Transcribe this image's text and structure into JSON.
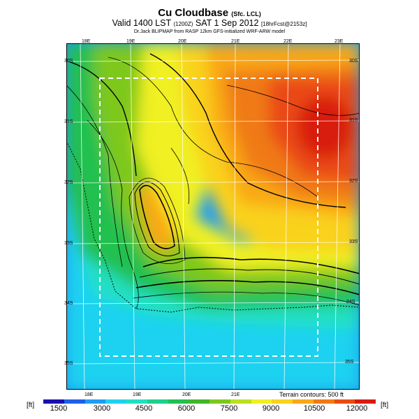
{
  "header": {
    "title": "Cu Cloudbase",
    "title_suffix": "(Sfc. LCL)",
    "valid_line": "Valid 1400 LST",
    "valid_z": "(1200Z)",
    "valid_date": "SAT 1 Sep 2012",
    "forecast_tag": "[18hrFcst@2153z]",
    "model_line": "Dr.Jack BLIPMAP from RASP 12km GFS-initialized WRF-ARW model"
  },
  "map": {
    "lon_labels_top": [
      "18E",
      "19E",
      "20E",
      "21E",
      "22E",
      "23E"
    ],
    "lon_labels_bottom": [
      "18E",
      "19E",
      "20E",
      "21E"
    ],
    "lat_labels_left": [
      "30S",
      "31S",
      "32S",
      "33S",
      "34S",
      "35S"
    ],
    "lat_labels_right": [
      "30S",
      "31S",
      "32S",
      "33S",
      "34S",
      "35S"
    ],
    "contour_note": "Terrain contours: 500 ft"
  },
  "colorbar": {
    "unit_left": "[ft]",
    "unit_right": "[ft]",
    "tick_labels": [
      "1500",
      "3000",
      "4500",
      "6000",
      "7500",
      "9000",
      "10500",
      "12000"
    ],
    "colors": [
      "#1a0fb0",
      "#1f5fe6",
      "#1f9cf2",
      "#1fd2f0",
      "#20e0c2",
      "#1fcf8a",
      "#20c050",
      "#42b52a",
      "#7ec81e",
      "#b9e020",
      "#f0f020",
      "#f9d21c",
      "#f9a818",
      "#f07a14",
      "#ea4a12",
      "#d81a10"
    ]
  },
  "field_colors": {
    "ocean_deep": "#1f9cf2",
    "ocean": "#1fd2f0",
    "coast": "#20e0c2",
    "green": "#20c050",
    "lime": "#7ec81e",
    "yellow": "#f0f020",
    "light_orange": "#f9d21c",
    "orange": "#f9a818",
    "dark_orange": "#f07a14",
    "red_orange": "#ea4a12",
    "red": "#d81a10"
  }
}
